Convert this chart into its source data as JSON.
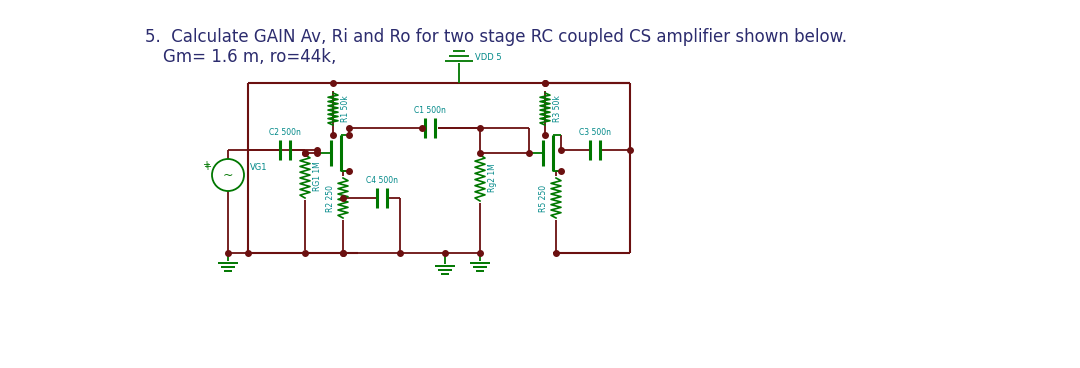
{
  "title_line1": "5.  Calculate GAIN Av, Ri and Ro for two stage RC coupled CS amplifier shown below.",
  "title_line2": "Gm= 1.6 m, ro=44k,",
  "title_color": "#2c2c6e",
  "title_fontsize": 12.0,
  "bg_color": "#e8e8e8",
  "panel_color": "#ffffff",
  "wire_color": "#6b1010",
  "component_color": "#007700",
  "label_color": "#008888",
  "vdd_label": "VDD 5",
  "vg1_label": "VG1",
  "components": {
    "R1": "R1 50k",
    "R3": "R3 50k",
    "RG1": "RG1 1M",
    "R2": "R2 250",
    "RG2": "Rg2 1M",
    "R5": "R5 250",
    "C1": "C1 500n",
    "C2": "C2 500n",
    "C3": "C3 500n",
    "C4": "C4 500n"
  }
}
